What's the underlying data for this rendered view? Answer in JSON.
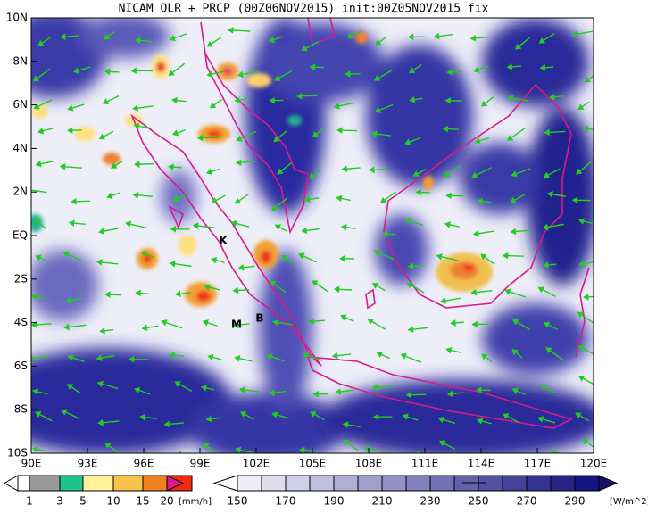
{
  "title": "NICAM OLR + PRCP (00Z06NOV2015) init:00Z05NOV2015 fix",
  "map": {
    "lon_labels": [
      "90E",
      "93E",
      "96E",
      "99E",
      "102E",
      "105E",
      "108E",
      "111E",
      "114E",
      "117E",
      "120E"
    ],
    "lat_labels": [
      "10N",
      "8N",
      "6N",
      "4N",
      "2N",
      "EQ",
      "2S",
      "4S",
      "6S",
      "8S",
      "10S"
    ],
    "places": [
      "K",
      "B",
      "M"
    ]
  },
  "legend": {
    "precip": {
      "labels": [
        1,
        3,
        5,
        10,
        15,
        20
      ],
      "unit": "[mm/h]"
    },
    "olr": {
      "labels": [
        150,
        170,
        190,
        210,
        230,
        250,
        270,
        290
      ],
      "unit": "[W/m^2]"
    }
  }
}
